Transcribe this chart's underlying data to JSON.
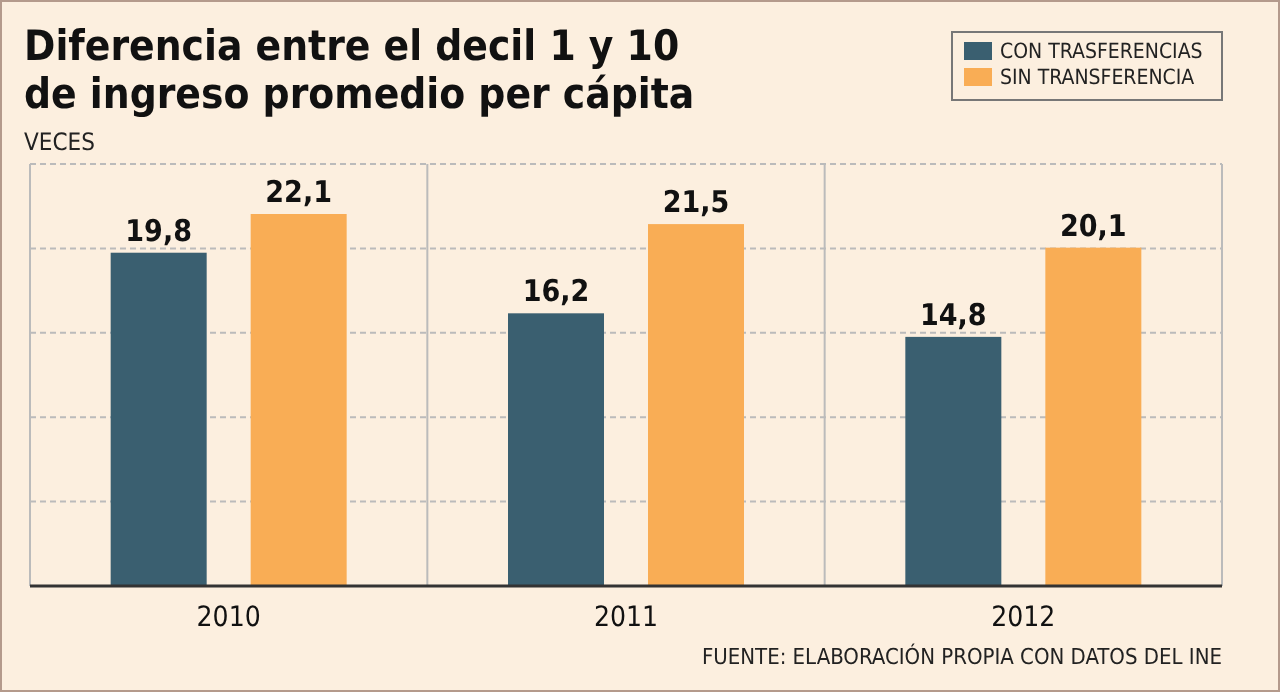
{
  "chart_data": {
    "type": "bar",
    "title": "Diferencia entre el decil 1 y 10\nde ingreso promedio per cápita",
    "ylabel": "VECES",
    "categories": [
      "2010",
      "2011",
      "2012"
    ],
    "series": [
      {
        "name": "CON TRASFERENCIAS",
        "color": "#3a5f70",
        "values": [
          19.8,
          16.2,
          14.8
        ],
        "value_labels": [
          "19,8",
          "16,2",
          "14,8"
        ]
      },
      {
        "name": "SIN TRANSFERENCIA",
        "color": "#f9ad55",
        "values": [
          22.1,
          21.5,
          20.1
        ],
        "value_labels": [
          "22,1",
          "21,5",
          "20,1"
        ]
      }
    ],
    "grid": "y",
    "legend": "top right",
    "tick_labels": "x",
    "annotations": [
      "FUENTE: ELABORACIÓN PROPIA CON DATOS DEL INE"
    ]
  }
}
